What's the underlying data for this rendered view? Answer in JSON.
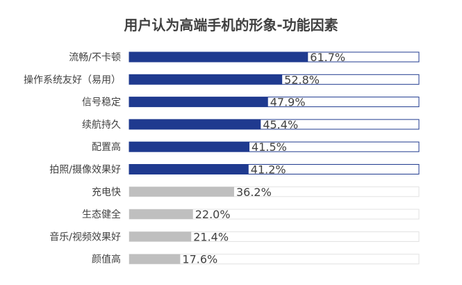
{
  "chart_data": {
    "type": "bar",
    "orientation": "horizontal",
    "title": "用户认为高端手机的形象-功能因素",
    "categories": [
      "流畅/不卡顿",
      "操作系统友好（易用）",
      "信号稳定",
      "续航持久",
      "配置高",
      "拍照/摄像效果好",
      "充电快",
      "生态健全",
      "音乐/视频效果好",
      "颜值高"
    ],
    "values": [
      61.7,
      52.8,
      47.9,
      45.4,
      41.5,
      41.2,
      36.2,
      22.0,
      21.4,
      17.6
    ],
    "value_labels": [
      "61.7%",
      "52.8%",
      "47.9%",
      "45.4%",
      "41.5%",
      "41.2%",
      "36.2%",
      "22.0%",
      "21.4%",
      "17.6%"
    ],
    "highlight_count": 6,
    "xlim": [
      0,
      100
    ],
    "grid": false,
    "colors": {
      "highlight": "#1F3A8F",
      "normal": "#BFBFBF",
      "track_border_highlight": "#1F3A8F",
      "track_border_normal": "#E2E2E2"
    }
  }
}
